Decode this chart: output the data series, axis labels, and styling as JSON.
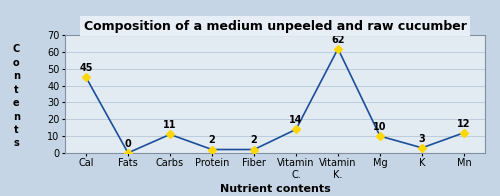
{
  "title": "Composition of a medium unpeeled and raw cucumber",
  "xlabel": "Nutrient contents",
  "ylabel_letters": [
    "C",
    "o",
    "n",
    "t",
    "e",
    "n",
    "t",
    "s"
  ],
  "categories": [
    "Cal",
    "Fats",
    "Carbs",
    "Protein",
    "Fiber",
    "Vitamin\nC.",
    "Vitamin\nK.",
    "Mg",
    "K",
    "Mn"
  ],
  "values": [
    45,
    0,
    11,
    2,
    2,
    14,
    62,
    10,
    3,
    12
  ],
  "ylim": [
    0,
    70
  ],
  "yticks": [
    0,
    10,
    20,
    30,
    40,
    50,
    60,
    70
  ],
  "line_color": "#1b4f9b",
  "marker_color": "#ffd700",
  "marker_style": "D",
  "marker_size": 4,
  "bg_outer": "#c5d5e5",
  "bg_ylabel": "#d8e8c8",
  "bg_inner": "#e2eaf2",
  "bg_title": "#e8eef5",
  "grid_color": "#b8c8d8",
  "title_fontsize": 9,
  "label_fontsize": 8,
  "tick_fontsize": 7,
  "annotation_fontsize": 7
}
